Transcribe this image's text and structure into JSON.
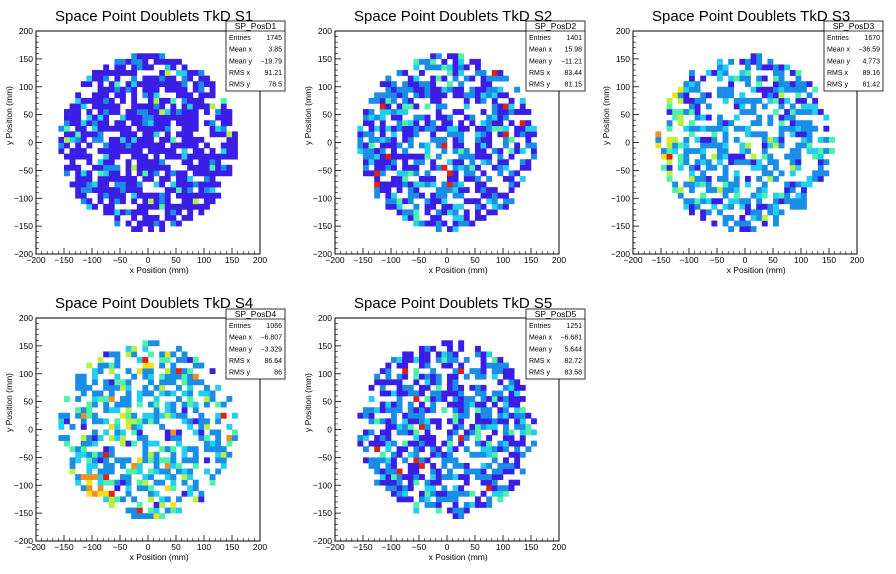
{
  "canvas_background": "#ffffff",
  "palette": [
    "#3a1ee6",
    "#1a8ee6",
    "#22cfef",
    "#4ff0a8",
    "#b8f040",
    "#f0e020",
    "#f09020",
    "#e02010"
  ],
  "chart_data": [
    {
      "type": "heatmap",
      "title": "Space Point Doublets TkD S1",
      "xlabel": "x Position (mm)",
      "ylabel": "y Position (mm)",
      "xlim": [
        -200,
        200
      ],
      "ylim": [
        -200,
        200
      ],
      "xticks": [
        "−200",
        "−150",
        "−100",
        "−50",
        "0",
        "50",
        "100",
        "150",
        "200"
      ],
      "yticks": [
        "−200",
        "−150",
        "−100",
        "−50",
        "0",
        "50",
        "100",
        "150",
        "200"
      ],
      "bin_size_mm": 10,
      "disk_radius_mm": 160,
      "occupancy": 0.74,
      "dominant_color": "#3a1ee6",
      "stats": {
        "name": "SP_PosD1",
        "rows": [
          {
            "label": "Entries",
            "value": "1745"
          },
          {
            "label": "Mean x",
            "value": "3.85"
          },
          {
            "label": "Mean y",
            "value": "−19.79"
          },
          {
            "label": "RMS x",
            "value": "91.21"
          },
          {
            "label": "RMS y",
            "value": "78.5"
          }
        ]
      }
    },
    {
      "type": "heatmap",
      "title": "Space Point Doublets TkD S2",
      "xlabel": "x Position (mm)",
      "ylabel": "y Position (mm)",
      "xlim": [
        -200,
        200
      ],
      "ylim": [
        -200,
        200
      ],
      "xticks": [
        "−200",
        "−150",
        "−100",
        "−50",
        "0",
        "50",
        "100",
        "150",
        "200"
      ],
      "yticks": [
        "−200",
        "−150",
        "−100",
        "−50",
        "0",
        "50",
        "100",
        "150",
        "200"
      ],
      "bin_size_mm": 10,
      "disk_radius_mm": 160,
      "occupancy": 0.66,
      "dominant_color": "#3a1ee6",
      "stats": {
        "name": "SP_PosD2",
        "rows": [
          {
            "label": "Entries",
            "value": "1401"
          },
          {
            "label": "Mean x",
            "value": "15.98"
          },
          {
            "label": "Mean y",
            "value": "−11.21"
          },
          {
            "label": "RMS x",
            "value": "83.44"
          },
          {
            "label": "RMS y",
            "value": "81.15"
          }
        ]
      }
    },
    {
      "type": "heatmap",
      "title": "Space Point Doublets TkD S3",
      "xlabel": "x Position (mm)",
      "ylabel": "y Position (mm)",
      "xlim": [
        -200,
        200
      ],
      "ylim": [
        -200,
        200
      ],
      "xticks": [
        "−200",
        "−150",
        "−100",
        "−50",
        "0",
        "50",
        "100",
        "150",
        "200"
      ],
      "yticks": [
        "−200",
        "−150",
        "−100",
        "−50",
        "0",
        "50",
        "100",
        "150",
        "200"
      ],
      "bin_size_mm": 10,
      "disk_radius_mm": 160,
      "occupancy": 0.6,
      "dominant_color": "#1a8ee6",
      "stats": {
        "name": "SP_PosD3",
        "rows": [
          {
            "label": "Entries",
            "value": "1670"
          },
          {
            "label": "Mean x",
            "value": "−36.59"
          },
          {
            "label": "Mean y",
            "value": "4.773"
          },
          {
            "label": "RMS x",
            "value": "89.16"
          },
          {
            "label": "RMS y",
            "value": "81.42"
          }
        ]
      }
    },
    {
      "type": "heatmap",
      "title": "Space Point Doublets TkD S4",
      "xlabel": "x Position (mm)",
      "ylabel": "y Position (mm)",
      "xlim": [
        -200,
        200
      ],
      "ylim": [
        -200,
        200
      ],
      "xticks": [
        "−200",
        "−150",
        "−100",
        "−50",
        "0",
        "50",
        "100",
        "150",
        "200"
      ],
      "yticks": [
        "−200",
        "−150",
        "−100",
        "−50",
        "0",
        "50",
        "100",
        "150",
        "200"
      ],
      "bin_size_mm": 10,
      "disk_radius_mm": 160,
      "occupancy": 0.52,
      "dominant_color": "#1a8ee6",
      "stats": {
        "name": "SP_PosD4",
        "rows": [
          {
            "label": "Entries",
            "value": "1066"
          },
          {
            "label": "Mean x",
            "value": "−6.807"
          },
          {
            "label": "Mean y",
            "value": "−3.329"
          },
          {
            "label": "RMS x",
            "value": "86.64"
          },
          {
            "label": "RMS y",
            "value": "86"
          }
        ]
      }
    },
    {
      "type": "heatmap",
      "title": "Space Point Doublets TkD S5",
      "xlabel": "x Position (mm)",
      "ylabel": "y Position (mm)",
      "xlim": [
        -200,
        200
      ],
      "ylim": [
        -200,
        200
      ],
      "xticks": [
        "−200",
        "−150",
        "−100",
        "−50",
        "0",
        "50",
        "100",
        "150",
        "200"
      ],
      "yticks": [
        "−200",
        "−150",
        "−100",
        "−50",
        "0",
        "50",
        "100",
        "150",
        "200"
      ],
      "bin_size_mm": 10,
      "disk_radius_mm": 160,
      "occupancy": 0.62,
      "dominant_color": "#3a1ee6",
      "stats": {
        "name": "SP_PosD5",
        "rows": [
          {
            "label": "Entries",
            "value": "1251"
          },
          {
            "label": "Mean x",
            "value": "−6.681"
          },
          {
            "label": "Mean y",
            "value": "5.644"
          },
          {
            "label": "RMS x",
            "value": "82.72"
          },
          {
            "label": "RMS y",
            "value": "83.58"
          }
        ]
      }
    }
  ]
}
